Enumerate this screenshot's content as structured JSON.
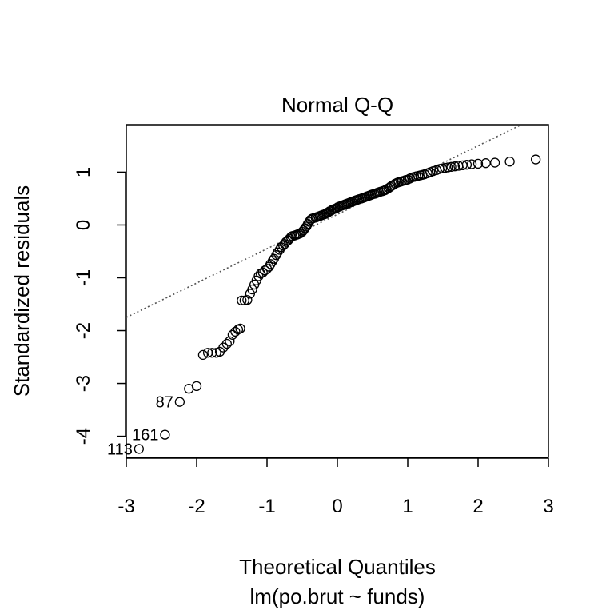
{
  "chart_data": {
    "type": "scatter",
    "title": "Normal Q-Q",
    "xlabel": "Theoretical Quantiles",
    "ylabel": "Standardized residuals",
    "subtitle": "lm(po.brut ~ funds)",
    "xlim": [
      -3,
      3
    ],
    "ylim": [
      -4.4,
      1.9
    ],
    "xticks": [
      -3,
      -2,
      -1,
      0,
      1,
      2,
      3
    ],
    "yticks": [
      -4,
      -3,
      -2,
      -1,
      0,
      1
    ],
    "grid": false,
    "legend": "none",
    "reference_line": {
      "style": "dotted",
      "color": "#555555",
      "points": [
        [
          -3,
          -1.75
        ],
        [
          2.6,
          1.89
        ]
      ]
    },
    "labeled_points": [
      {
        "label": "87",
        "x": -2.24,
        "y": -3.35
      },
      {
        "label": "161",
        "x": -2.45,
        "y": -3.97
      },
      {
        "label": "113",
        "x": -2.82,
        "y": -4.24
      }
    ],
    "points": [
      [
        -2.82,
        -4.24
      ],
      [
        -2.45,
        -3.97
      ],
      [
        -2.24,
        -3.35
      ],
      [
        -2.11,
        -3.1
      ],
      [
        -2.0,
        -3.05
      ],
      [
        -1.91,
        -2.46
      ],
      [
        -1.84,
        -2.42
      ],
      [
        -1.78,
        -2.42
      ],
      [
        -1.72,
        -2.42
      ],
      [
        -1.67,
        -2.4
      ],
      [
        -1.62,
        -2.32
      ],
      [
        -1.57,
        -2.25
      ],
      [
        -1.53,
        -2.2
      ],
      [
        -1.49,
        -2.08
      ],
      [
        -1.45,
        -2.02
      ],
      [
        -1.41,
        -1.98
      ],
      [
        -1.38,
        -1.96
      ],
      [
        -1.36,
        -1.43
      ],
      [
        -1.32,
        -1.43
      ],
      [
        -1.28,
        -1.42
      ],
      [
        -1.24,
        -1.3
      ],
      [
        -1.21,
        -1.22
      ],
      [
        -1.18,
        -1.13
      ],
      [
        -1.15,
        -1.05
      ],
      [
        -1.12,
        -0.97
      ],
      [
        -1.09,
        -0.92
      ],
      [
        -1.06,
        -0.9
      ],
      [
        -1.03,
        -0.86
      ],
      [
        -1.0,
        -0.83
      ],
      [
        -0.97,
        -0.79
      ],
      [
        -0.95,
        -0.74
      ],
      [
        -0.92,
        -0.68
      ],
      [
        -0.9,
        -0.64
      ],
      [
        -0.87,
        -0.57
      ],
      [
        -0.85,
        -0.52
      ],
      [
        -0.82,
        -0.47
      ],
      [
        -0.8,
        -0.42
      ],
      [
        -0.77,
        -0.39
      ],
      [
        -0.75,
        -0.36
      ],
      [
        -0.73,
        -0.32
      ],
      [
        -0.7,
        -0.29
      ],
      [
        -0.68,
        -0.26
      ],
      [
        -0.66,
        -0.23
      ],
      [
        -0.64,
        -0.21
      ],
      [
        -0.61,
        -0.2
      ],
      [
        -0.59,
        -0.19
      ],
      [
        -0.57,
        -0.18
      ],
      [
        -0.55,
        -0.17
      ],
      [
        -0.53,
        -0.16
      ],
      [
        -0.5,
        -0.13
      ],
      [
        -0.48,
        -0.1
      ],
      [
        -0.46,
        -0.06
      ],
      [
        -0.44,
        -0.03
      ],
      [
        -0.42,
        0.02
      ],
      [
        -0.4,
        0.06
      ],
      [
        -0.38,
        0.1
      ],
      [
        -0.36,
        0.12
      ],
      [
        -0.34,
        0.13
      ],
      [
        -0.31,
        0.14
      ],
      [
        -0.29,
        0.15
      ],
      [
        -0.27,
        0.16
      ],
      [
        -0.25,
        0.17
      ],
      [
        -0.23,
        0.18
      ],
      [
        -0.21,
        0.19
      ],
      [
        -0.19,
        0.2
      ],
      [
        -0.17,
        0.21
      ],
      [
        -0.15,
        0.23
      ],
      [
        -0.13,
        0.24
      ],
      [
        -0.11,
        0.26
      ],
      [
        -0.09,
        0.27
      ],
      [
        -0.07,
        0.29
      ],
      [
        -0.05,
        0.3
      ],
      [
        -0.03,
        0.31
      ],
      [
        -0.01,
        0.32
      ],
      [
        0.01,
        0.34
      ],
      [
        0.03,
        0.35
      ],
      [
        0.05,
        0.36
      ],
      [
        0.07,
        0.37
      ],
      [
        0.09,
        0.38
      ],
      [
        0.11,
        0.39
      ],
      [
        0.13,
        0.4
      ],
      [
        0.15,
        0.41
      ],
      [
        0.17,
        0.42
      ],
      [
        0.19,
        0.43
      ],
      [
        0.21,
        0.44
      ],
      [
        0.23,
        0.45
      ],
      [
        0.25,
        0.46
      ],
      [
        0.27,
        0.47
      ],
      [
        0.29,
        0.48
      ],
      [
        0.31,
        0.49
      ],
      [
        0.34,
        0.5
      ],
      [
        0.36,
        0.51
      ],
      [
        0.38,
        0.52
      ],
      [
        0.4,
        0.53
      ],
      [
        0.42,
        0.54
      ],
      [
        0.44,
        0.55
      ],
      [
        0.46,
        0.56
      ],
      [
        0.48,
        0.57
      ],
      [
        0.5,
        0.58
      ],
      [
        0.53,
        0.59
      ],
      [
        0.55,
        0.6
      ],
      [
        0.57,
        0.61
      ],
      [
        0.59,
        0.62
      ],
      [
        0.61,
        0.63
      ],
      [
        0.64,
        0.64
      ],
      [
        0.66,
        0.65
      ],
      [
        0.68,
        0.66
      ],
      [
        0.7,
        0.68
      ],
      [
        0.73,
        0.7
      ],
      [
        0.75,
        0.72
      ],
      [
        0.77,
        0.74
      ],
      [
        0.8,
        0.76
      ],
      [
        0.82,
        0.78
      ],
      [
        0.85,
        0.8
      ],
      [
        0.87,
        0.81
      ],
      [
        0.9,
        0.82
      ],
      [
        0.92,
        0.83
      ],
      [
        0.95,
        0.84
      ],
      [
        0.97,
        0.85
      ],
      [
        1.0,
        0.86
      ],
      [
        1.03,
        0.88
      ],
      [
        1.06,
        0.9
      ],
      [
        1.09,
        0.91
      ],
      [
        1.12,
        0.92
      ],
      [
        1.15,
        0.93
      ],
      [
        1.18,
        0.94
      ],
      [
        1.21,
        0.95
      ],
      [
        1.24,
        0.96
      ],
      [
        1.28,
        0.98
      ],
      [
        1.32,
        1.0
      ],
      [
        1.36,
        1.02
      ],
      [
        1.41,
        1.04
      ],
      [
        1.45,
        1.06
      ],
      [
        1.49,
        1.07
      ],
      [
        1.53,
        1.08
      ],
      [
        1.57,
        1.09
      ],
      [
        1.62,
        1.1
      ],
      [
        1.67,
        1.11
      ],
      [
        1.72,
        1.12
      ],
      [
        1.78,
        1.13
      ],
      [
        1.84,
        1.14
      ],
      [
        1.91,
        1.15
      ],
      [
        2.0,
        1.16
      ],
      [
        2.11,
        1.17
      ],
      [
        2.24,
        1.18
      ],
      [
        2.45,
        1.2
      ],
      [
        2.82,
        1.24
      ]
    ]
  }
}
